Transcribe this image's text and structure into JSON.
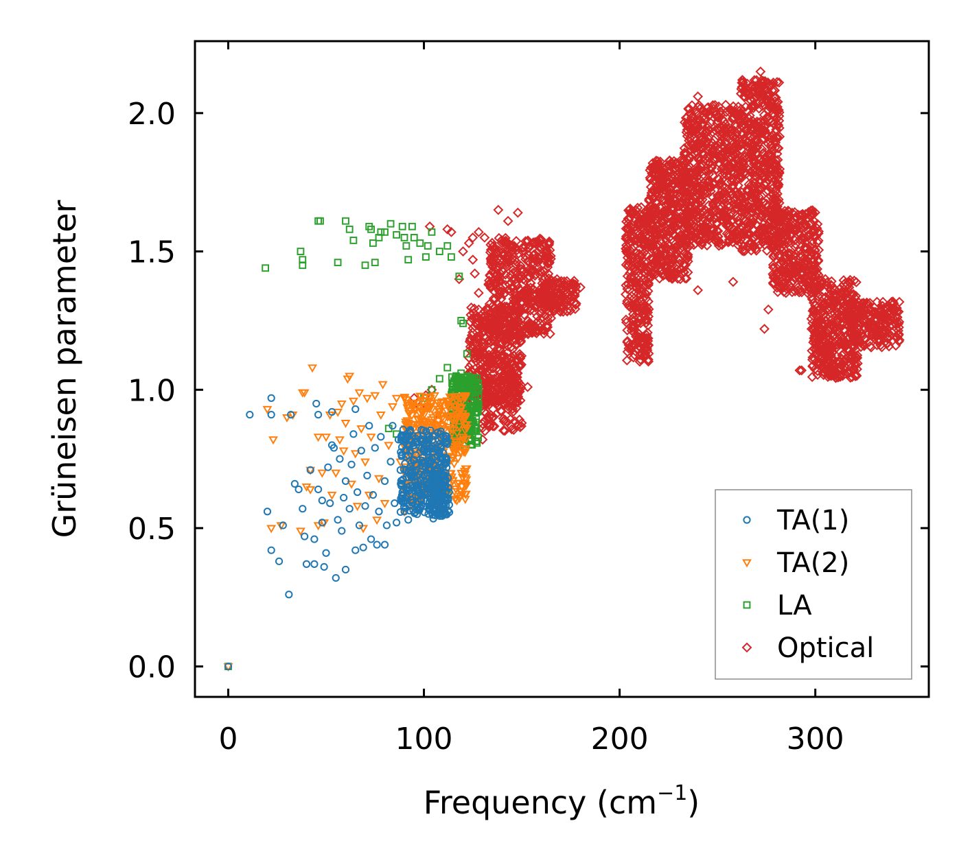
{
  "chart_data": {
    "type": "scatter",
    "xlabel": "Frequency (cm",
    "xlabel_sup": "−1",
    "xlabel_close": ")",
    "ylabel": "Grüneisen parameter",
    "xlim": [
      -17,
      358
    ],
    "ylim": [
      -0.11,
      2.26
    ],
    "x_ticks": [
      0,
      100,
      200,
      300
    ],
    "x_tick_labels": [
      "0",
      "100",
      "200",
      "300"
    ],
    "y_ticks": [
      0.0,
      0.5,
      1.0,
      1.5,
      2.0
    ],
    "y_tick_labels": [
      "0.0",
      "0.5",
      "1.0",
      "1.5",
      "2.0"
    ],
    "legend_position": "lower right",
    "series": [
      {
        "name": "TA(1)",
        "marker": "circle",
        "color": "#1f77b4",
        "points": [
          [
            0,
            0
          ],
          [
            11,
            0.91
          ],
          [
            22,
            0.97
          ],
          [
            22,
            0.91
          ],
          [
            32,
            0.91
          ],
          [
            45,
            0.95
          ],
          [
            46,
            0.91
          ],
          [
            53,
            0.92
          ],
          [
            65,
            0.93
          ],
          [
            20,
            0.56
          ],
          [
            22,
            0.42
          ],
          [
            26,
            0.38
          ],
          [
            28,
            0.51
          ],
          [
            31,
            0.26
          ],
          [
            34,
            0.66
          ],
          [
            36,
            0.64
          ],
          [
            38,
            0.57
          ],
          [
            39,
            0.47
          ],
          [
            40,
            0.37
          ],
          [
            42,
            0.71
          ],
          [
            44,
            0.46
          ],
          [
            44,
            0.37
          ],
          [
            46,
            0.64
          ],
          [
            48,
            0.6
          ],
          [
            48,
            0.52
          ],
          [
            49,
            0.36
          ],
          [
            50,
            0.41
          ],
          [
            51,
            0.72
          ],
          [
            52,
            0.59
          ],
          [
            53,
            0.8
          ],
          [
            54,
            0.79
          ],
          [
            55,
            0.32
          ],
          [
            56,
            0.53
          ],
          [
            57,
            0.75
          ],
          [
            58,
            0.49
          ],
          [
            59,
            0.61
          ],
          [
            60,
            0.67
          ],
          [
            60,
            0.35
          ],
          [
            62,
            0.57
          ],
          [
            63,
            0.73
          ],
          [
            64,
            0.84
          ],
          [
            65,
            0.42
          ],
          [
            66,
            0.63
          ],
          [
            67,
            0.51
          ],
          [
            68,
            0.78
          ],
          [
            69,
            0.43
          ],
          [
            70,
            0.58
          ],
          [
            71,
            0.69
          ],
          [
            72,
            0.87
          ],
          [
            73,
            0.46
          ],
          [
            74,
            0.62
          ],
          [
            75,
            0.79
          ],
          [
            76,
            0.44
          ],
          [
            77,
            0.56
          ],
          [
            78,
            0.83
          ],
          [
            80,
            0.44
          ],
          [
            80,
            0.67
          ],
          [
            81,
            0.51
          ],
          [
            83,
            0.74
          ],
          [
            84,
            0.87
          ],
          [
            85,
            0.59
          ],
          [
            86,
            0.52
          ],
          [
            87,
            0.82
          ],
          [
            88,
            0.71
          ],
          [
            89,
            0.63
          ],
          [
            90,
            0.56
          ],
          [
            91,
            0.78
          ],
          [
            92,
            0.53
          ],
          [
            93,
            0.85
          ],
          [
            94,
            0.69
          ]
        ],
        "clusters": [
          {
            "x": [
              88,
              112
            ],
            "y": [
              0.55,
              0.86
            ],
            "n": 300
          },
          {
            "x": [
              104,
              113
            ],
            "y": [
              0.53,
              0.7
            ],
            "n": 90
          }
        ]
      },
      {
        "name": "TA(2)",
        "marker": "triangle_down",
        "color": "#ff7f0e",
        "points": [
          [
            0,
            0
          ],
          [
            20,
            0.93
          ],
          [
            23,
            0.82
          ],
          [
            22,
            0.5
          ],
          [
            27,
            0.51
          ],
          [
            30,
            0.9
          ],
          [
            33,
            0.91
          ],
          [
            37,
            0.49
          ],
          [
            38,
            0.99
          ],
          [
            39,
            0.99
          ],
          [
            40,
            0.65
          ],
          [
            42,
            0.64
          ],
          [
            42,
            0.71
          ],
          [
            43,
            1.08
          ],
          [
            46,
            0.51
          ],
          [
            46,
            0.83
          ],
          [
            48,
            0.7
          ],
          [
            49,
            0.52
          ],
          [
            50,
            0.83
          ],
          [
            52,
            0.91
          ],
          [
            53,
            0.62
          ],
          [
            55,
            0.7
          ],
          [
            56,
            0.92
          ],
          [
            57,
            0.82
          ],
          [
            58,
            0.95
          ],
          [
            59,
            0.78
          ],
          [
            60,
            0.88
          ],
          [
            61,
            1.04
          ],
          [
            62,
            1.05
          ],
          [
            63,
            0.66
          ],
          [
            64,
            0.96
          ],
          [
            65,
            0.77
          ],
          [
            66,
            0.58
          ],
          [
            67,
            0.99
          ],
          [
            68,
            0.86
          ],
          [
            69,
            0.5
          ],
          [
            70,
            0.74
          ],
          [
            71,
            0.97
          ],
          [
            72,
            0.62
          ],
          [
            73,
            0.83
          ],
          [
            75,
            0.98
          ],
          [
            76,
            0.53
          ],
          [
            77,
            0.68
          ],
          [
            78,
            0.91
          ],
          [
            79,
            1.02
          ],
          [
            80,
            0.59
          ],
          [
            82,
            0.8
          ],
          [
            84,
            0.94
          ],
          [
            86,
            0.97
          ],
          [
            88,
            0.74
          ],
          [
            90,
            0.56
          ],
          [
            92,
            0.88
          ],
          [
            94,
            0.58
          ]
        ],
        "clusters": [
          {
            "x": [
              90,
              122
            ],
            "y": [
              0.6,
              0.98
            ],
            "n": 380
          }
        ]
      },
      {
        "name": "LA",
        "marker": "square",
        "color": "#2ca02c",
        "points": [
          [
            0,
            0
          ],
          [
            19,
            1.44
          ],
          [
            37,
            1.5
          ],
          [
            38,
            1.47
          ],
          [
            38,
            1.45
          ],
          [
            46,
            1.61
          ],
          [
            47,
            1.61
          ],
          [
            56,
            1.46
          ],
          [
            60,
            1.61
          ],
          [
            62,
            1.58
          ],
          [
            64,
            1.54
          ],
          [
            70,
            1.45
          ],
          [
            72,
            1.59
          ],
          [
            73,
            1.58
          ],
          [
            74,
            1.53
          ],
          [
            75,
            1.46
          ],
          [
            77,
            1.55
          ],
          [
            78,
            1.57
          ],
          [
            80,
            1.57
          ],
          [
            83,
            1.6
          ],
          [
            86,
            1.56
          ],
          [
            89,
            1.59
          ],
          [
            90,
            1.55
          ],
          [
            91,
            1.52
          ],
          [
            92,
            1.47
          ],
          [
            94,
            1.59
          ],
          [
            95,
            1.55
          ],
          [
            98,
            1.53
          ],
          [
            101,
            1.48
          ],
          [
            102,
            1.52
          ],
          [
            104,
            1.57
          ],
          [
            108,
            1.5
          ],
          [
            112,
            1.52
          ],
          [
            114,
            1.48
          ],
          [
            118,
            1.41
          ],
          [
            119,
            1.25
          ],
          [
            120,
            1.24
          ],
          [
            82,
            0.86
          ],
          [
            86,
            0.84
          ],
          [
            100,
            0.97
          ],
          [
            104,
            1.0
          ],
          [
            108,
            1.04
          ],
          [
            112,
            1.08
          ],
          [
            116,
            1.04
          ],
          [
            119,
            1.06
          ],
          [
            122,
            1.13
          ],
          [
            98,
            0.6
          ],
          [
            104,
            0.59
          ],
          [
            110,
            0.57
          ],
          [
            112,
            0.62
          ]
        ],
        "clusters": [
          {
            "x": [
              114,
              128
            ],
            "y": [
              0.8,
              1.05
            ],
            "n": 240
          }
        ]
      },
      {
        "name": "Optical",
        "marker": "diamond",
        "color": "#d62728",
        "points": [
          [
            95,
            0.97
          ],
          [
            98,
            0.94
          ],
          [
            101,
            0.98
          ],
          [
            103,
            1.59
          ],
          [
            104,
            1.0
          ],
          [
            107,
            0.89
          ],
          [
            112,
            1.58
          ],
          [
            114,
            1.57
          ],
          [
            120,
            1.5
          ],
          [
            123,
            1.53
          ],
          [
            125,
            1.55
          ],
          [
            128,
            1.57
          ],
          [
            131,
            1.55
          ],
          [
            138,
            1.65
          ],
          [
            143,
            1.61
          ],
          [
            148,
            1.64
          ],
          [
            118,
            1.4
          ],
          [
            125,
            1.47
          ],
          [
            126,
            1.42
          ],
          [
            128,
            1.35
          ],
          [
            128,
            1.29
          ],
          [
            133,
            1.38
          ],
          [
            155,
            1.22
          ],
          [
            180,
            1.37
          ],
          [
            130,
            0.82
          ],
          [
            150,
            0.88
          ],
          [
            153,
            1.01
          ],
          [
            274,
            1.22
          ],
          [
            276,
            1.29
          ],
          [
            292,
            1.07
          ],
          [
            293,
            1.07
          ],
          [
            240,
            2.06
          ],
          [
            242,
            1.96
          ],
          [
            264,
            2.08
          ],
          [
            262,
            2.07
          ],
          [
            272,
            2.15
          ],
          [
            231,
            1.4
          ],
          [
            240,
            1.36
          ],
          [
            258,
            1.39
          ],
          [
            285,
            1.35
          ],
          [
            307,
            1.29
          ],
          [
            330,
            1.23
          ],
          [
            343,
            1.18
          ],
          [
            286,
            1.41
          ],
          [
            296,
            1.35
          ],
          [
            304,
            1.27
          ],
          [
            337,
            1.19
          ]
        ],
        "clusters": [
          {
            "x": [
              123,
              150
            ],
            "y": [
              0.95,
              1.3
            ],
            "n": 420
          },
          {
            "x": [
              133,
              165
            ],
            "y": [
              1.2,
              1.55
            ],
            "n": 420
          },
          {
            "x": [
              160,
              178
            ],
            "y": [
              1.28,
              1.4
            ],
            "n": 120
          },
          {
            "x": [
              130,
              150
            ],
            "y": [
              0.85,
              1.05
            ],
            "n": 120
          },
          {
            "x": [
              203,
              215
            ],
            "y": [
              1.1,
              1.66
            ],
            "n": 300
          },
          {
            "x": [
              215,
              235
            ],
            "y": [
              1.4,
              1.83
            ],
            "n": 420
          },
          {
            "x": [
              233,
              262
            ],
            "y": [
              1.52,
              2.03
            ],
            "n": 600
          },
          {
            "x": [
              262,
              282
            ],
            "y": [
              1.5,
              2.12
            ],
            "n": 520
          },
          {
            "x": [
              278,
              302
            ],
            "y": [
              1.35,
              1.65
            ],
            "n": 330
          },
          {
            "x": [
              298,
              322
            ],
            "y": [
              1.04,
              1.4
            ],
            "n": 420
          },
          {
            "x": [
              318,
              343
            ],
            "y": [
              1.15,
              1.32
            ],
            "n": 200
          }
        ]
      }
    ]
  }
}
